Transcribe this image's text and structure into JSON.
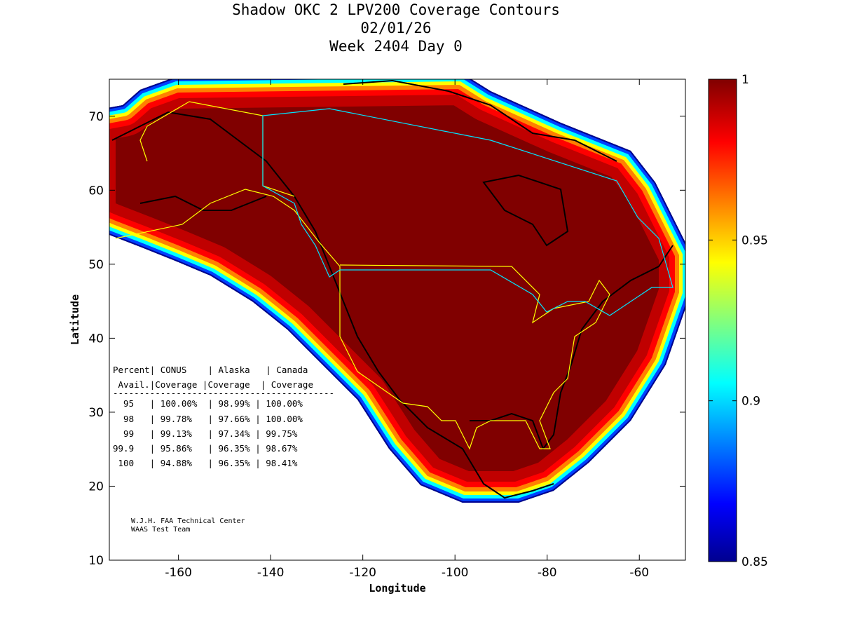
{
  "title": {
    "line1": "Shadow OKC 2 LPV200 Coverage Contours",
    "line2": "02/01/26",
    "line3": "Week 2404 Day 0"
  },
  "chart_data": {
    "type": "heatmap",
    "xlabel": "Longitude",
    "ylabel": "Latitude",
    "xlim": [
      -175,
      -50
    ],
    "ylim": [
      10,
      75
    ],
    "xticks": [
      -160,
      -140,
      -120,
      -100,
      -80,
      -60
    ],
    "yticks": [
      10,
      20,
      30,
      40,
      50,
      60,
      70
    ],
    "colorbar": {
      "range": [
        0.85,
        1
      ],
      "ticks": [
        1,
        0.95,
        0.9,
        0.85
      ],
      "colormap": "jet"
    }
  },
  "table": {
    "header1": "Percent| CONUS    | Alaska   | Canada",
    "header2": " Avail.|Coverage |Coverage  | Coverage",
    "divider": "------------------------------------------",
    "rows": [
      "  95   | 100.00%  | 98.99% | 100.00%",
      "  98   | 99.78%   | 97.66% | 100.00%",
      "  99   | 99.13%   | 97.34% | 99.75%",
      "99.9   | 95.86%   | 96.35% | 98.67%",
      " 100   | 94.88%   | 96.35% | 98.41%"
    ]
  },
  "credit": {
    "line1": "W.J.H. FAA Technical Center",
    "line2": "WAAS Test Team"
  }
}
